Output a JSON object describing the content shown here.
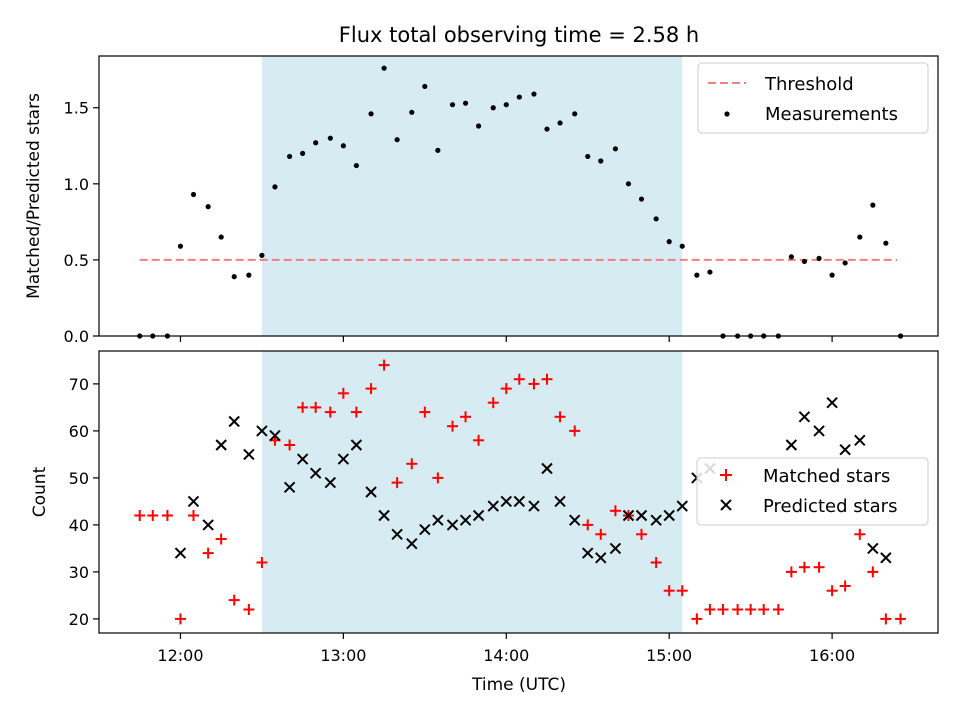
{
  "chart_data": {
    "type": "scatter",
    "title": "Flux total observing time = 2.58 h",
    "xlabel": "Time (UTC)",
    "xlim": [
      11.5,
      16.65
    ],
    "xticks": [
      {
        "value": 12,
        "label": "12:00"
      },
      {
        "value": 13,
        "label": "13:00"
      },
      {
        "value": 14,
        "label": "14:00"
      },
      {
        "value": 15,
        "label": "15:00"
      },
      {
        "value": 16,
        "label": "16:00"
      }
    ],
    "shaded_interval": {
      "start": 12.5,
      "end": 15.08,
      "color": "#add8e6"
    },
    "panels": [
      {
        "id": "ratio",
        "ylabel": "Matched/Predicted stars",
        "ylim": [
          0,
          1.84
        ],
        "yticks": [
          {
            "value": 0,
            "label": "0.0"
          },
          {
            "value": 0.5,
            "label": "0.5"
          },
          {
            "value": 1.0,
            "label": "1.0"
          },
          {
            "value": 1.5,
            "label": "1.5"
          }
        ],
        "threshold": {
          "name": "Threshold",
          "value": 0.5,
          "x_start": 11.75,
          "x_end": 16.4,
          "color": "#f08080"
        },
        "series": [
          {
            "name": "Measurements",
            "marker": "dot",
            "color": "#000000",
            "points": [
              [
                11.75,
                0.0
              ],
              [
                11.83,
                0.0
              ],
              [
                11.92,
                0.0
              ],
              [
                12.0,
                0.59
              ],
              [
                12.08,
                0.93
              ],
              [
                12.17,
                0.85
              ],
              [
                12.25,
                0.65
              ],
              [
                12.33,
                0.39
              ],
              [
                12.42,
                0.4
              ],
              [
                12.5,
                0.53
              ],
              [
                12.58,
                0.98
              ],
              [
                12.67,
                1.18
              ],
              [
                12.75,
                1.2
              ],
              [
                12.83,
                1.27
              ],
              [
                12.92,
                1.3
              ],
              [
                13.0,
                1.25
              ],
              [
                13.08,
                1.12
              ],
              [
                13.17,
                1.46
              ],
              [
                13.25,
                1.76
              ],
              [
                13.33,
                1.29
              ],
              [
                13.42,
                1.47
              ],
              [
                13.5,
                1.64
              ],
              [
                13.58,
                1.22
              ],
              [
                13.67,
                1.52
              ],
              [
                13.75,
                1.53
              ],
              [
                13.83,
                1.38
              ],
              [
                13.92,
                1.5
              ],
              [
                14.0,
                1.52
              ],
              [
                14.08,
                1.57
              ],
              [
                14.17,
                1.59
              ],
              [
                14.25,
                1.36
              ],
              [
                14.33,
                1.4
              ],
              [
                14.42,
                1.46
              ],
              [
                14.5,
                1.18
              ],
              [
                14.58,
                1.15
              ],
              [
                14.67,
                1.23
              ],
              [
                14.75,
                1.0
              ],
              [
                14.83,
                0.9
              ],
              [
                14.92,
                0.77
              ],
              [
                15.0,
                0.62
              ],
              [
                15.08,
                0.59
              ],
              [
                15.17,
                0.4
              ],
              [
                15.25,
                0.42
              ],
              [
                15.33,
                0.0
              ],
              [
                15.42,
                0.0
              ],
              [
                15.5,
                0.0
              ],
              [
                15.58,
                0.0
              ],
              [
                15.67,
                0.0
              ],
              [
                15.75,
                0.52
              ],
              [
                15.83,
                0.49
              ],
              [
                15.92,
                0.51
              ],
              [
                16.0,
                0.4
              ],
              [
                16.08,
                0.48
              ],
              [
                16.17,
                0.65
              ],
              [
                16.25,
                0.86
              ],
              [
                16.33,
                0.61
              ],
              [
                16.42,
                0.0
              ]
            ]
          }
        ],
        "legend": [
          "Threshold",
          "Measurements"
        ],
        "legend_position": "top-right"
      },
      {
        "id": "count",
        "ylabel": "Count",
        "ylim": [
          17,
          77
        ],
        "yticks": [
          {
            "value": 20,
            "label": "20"
          },
          {
            "value": 30,
            "label": "30"
          },
          {
            "value": 40,
            "label": "40"
          },
          {
            "value": 50,
            "label": "50"
          },
          {
            "value": 60,
            "label": "60"
          },
          {
            "value": 70,
            "label": "70"
          }
        ],
        "series": [
          {
            "name": "Matched stars",
            "marker": "plus",
            "color": "#ff0000",
            "points": [
              [
                11.75,
                42
              ],
              [
                11.83,
                42
              ],
              [
                11.92,
                42
              ],
              [
                12.0,
                20
              ],
              [
                12.08,
                42
              ],
              [
                12.17,
                34
              ],
              [
                12.25,
                37
              ],
              [
                12.33,
                24
              ],
              [
                12.42,
                22
              ],
              [
                12.5,
                32
              ],
              [
                12.58,
                58
              ],
              [
                12.67,
                57
              ],
              [
                12.75,
                65
              ],
              [
                12.83,
                65
              ],
              [
                12.92,
                64
              ],
              [
                13.0,
                68
              ],
              [
                13.08,
                64
              ],
              [
                13.17,
                69
              ],
              [
                13.25,
                74
              ],
              [
                13.33,
                49
              ],
              [
                13.42,
                53
              ],
              [
                13.5,
                64
              ],
              [
                13.58,
                50
              ],
              [
                13.67,
                61
              ],
              [
                13.75,
                63
              ],
              [
                13.83,
                58
              ],
              [
                13.92,
                66
              ],
              [
                14.0,
                69
              ],
              [
                14.08,
                71
              ],
              [
                14.17,
                70
              ],
              [
                14.25,
                71
              ],
              [
                14.33,
                63
              ],
              [
                14.42,
                60
              ],
              [
                14.5,
                40
              ],
              [
                14.58,
                38
              ],
              [
                14.67,
                43
              ],
              [
                14.75,
                42
              ],
              [
                14.83,
                38
              ],
              [
                14.92,
                32
              ],
              [
                15.0,
                26
              ],
              [
                15.08,
                26
              ],
              [
                15.17,
                20
              ],
              [
                15.25,
                22
              ],
              [
                15.33,
                22
              ],
              [
                15.42,
                22
              ],
              [
                15.5,
                22
              ],
              [
                15.58,
                22
              ],
              [
                15.67,
                22
              ],
              [
                15.75,
                30
              ],
              [
                15.83,
                31
              ],
              [
                15.92,
                31
              ],
              [
                16.0,
                26
              ],
              [
                16.08,
                27
              ],
              [
                16.17,
                38
              ],
              [
                16.25,
                30
              ],
              [
                16.33,
                20
              ],
              [
                16.42,
                20
              ]
            ]
          },
          {
            "name": "Predicted stars",
            "marker": "x",
            "color": "#000000",
            "points": [
              [
                12.0,
                34
              ],
              [
                12.08,
                45
              ],
              [
                12.17,
                40
              ],
              [
                12.25,
                57
              ],
              [
                12.33,
                62
              ],
              [
                12.42,
                55
              ],
              [
                12.5,
                60
              ],
              [
                12.58,
                59
              ],
              [
                12.67,
                48
              ],
              [
                12.75,
                54
              ],
              [
                12.83,
                51
              ],
              [
                12.92,
                49
              ],
              [
                13.0,
                54
              ],
              [
                13.08,
                57
              ],
              [
                13.17,
                47
              ],
              [
                13.25,
                42
              ],
              [
                13.33,
                38
              ],
              [
                13.42,
                36
              ],
              [
                13.5,
                39
              ],
              [
                13.58,
                41
              ],
              [
                13.67,
                40
              ],
              [
                13.75,
                41
              ],
              [
                13.83,
                42
              ],
              [
                13.92,
                44
              ],
              [
                14.0,
                45
              ],
              [
                14.08,
                45
              ],
              [
                14.17,
                44
              ],
              [
                14.25,
                52
              ],
              [
                14.33,
                45
              ],
              [
                14.42,
                41
              ],
              [
                14.5,
                34
              ],
              [
                14.58,
                33
              ],
              [
                14.67,
                35
              ],
              [
                14.75,
                42
              ],
              [
                14.83,
                42
              ],
              [
                14.92,
                41
              ],
              [
                15.0,
                42
              ],
              [
                15.08,
                44
              ],
              [
                15.17,
                50
              ],
              [
                15.25,
                52
              ],
              [
                15.75,
                57
              ],
              [
                15.83,
                63
              ],
              [
                15.92,
                60
              ],
              [
                16.0,
                66
              ],
              [
                16.08,
                56
              ],
              [
                16.17,
                58
              ],
              [
                16.25,
                35
              ],
              [
                16.33,
                33
              ]
            ]
          }
        ],
        "legend": [
          "Matched stars",
          "Predicted stars"
        ],
        "legend_position": "center-right"
      }
    ]
  }
}
